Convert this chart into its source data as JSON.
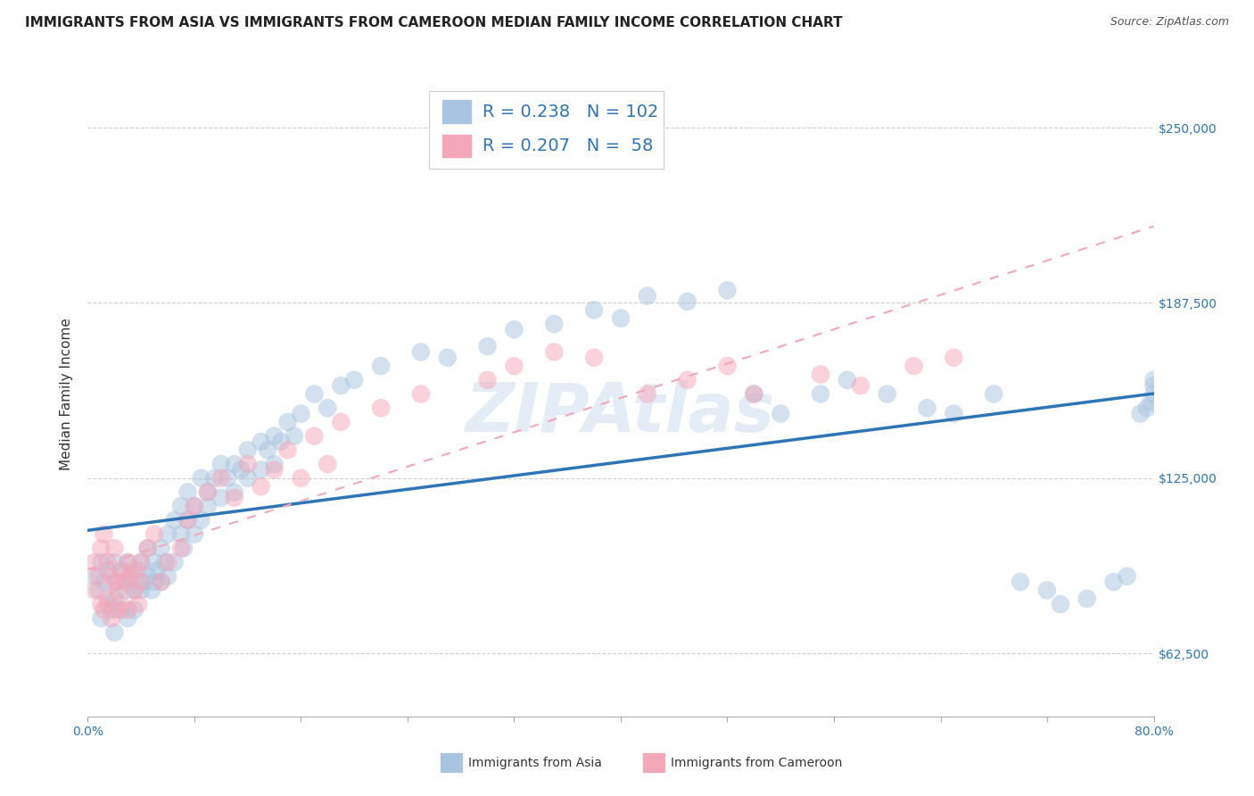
{
  "title": "IMMIGRANTS FROM ASIA VS IMMIGRANTS FROM CAMEROON MEDIAN FAMILY INCOME CORRELATION CHART",
  "source": "Source: ZipAtlas.com",
  "ylabel": "Median Family Income",
  "yticks": [
    62500,
    125000,
    187500,
    250000
  ],
  "ytick_labels": [
    "$62,500",
    "$125,000",
    "$187,500",
    "$250,000"
  ],
  "xlim": [
    0.0,
    0.8
  ],
  "ylim": [
    40000,
    270000
  ],
  "legend_r1": "0.238",
  "legend_n1": "102",
  "legend_r2": "0.207",
  "legend_n2": " 58",
  "color_asia": "#a8c4e0",
  "color_cameroon": "#f4a7b9",
  "color_asia_line": "#2e75b6",
  "color_cameroon_line": "#f4a7b9",
  "color_text_blue": "#2e75b6",
  "watermark": "ZIPAtlas",
  "asia_x": [
    0.005,
    0.008,
    0.01,
    0.01,
    0.012,
    0.015,
    0.015,
    0.018,
    0.02,
    0.02,
    0.02,
    0.022,
    0.025,
    0.025,
    0.028,
    0.03,
    0.03,
    0.03,
    0.032,
    0.035,
    0.035,
    0.038,
    0.04,
    0.04,
    0.042,
    0.045,
    0.045,
    0.048,
    0.05,
    0.05,
    0.052,
    0.055,
    0.055,
    0.058,
    0.06,
    0.06,
    0.065,
    0.065,
    0.07,
    0.07,
    0.072,
    0.075,
    0.075,
    0.08,
    0.08,
    0.085,
    0.085,
    0.09,
    0.09,
    0.095,
    0.1,
    0.1,
    0.105,
    0.11,
    0.11,
    0.115,
    0.12,
    0.12,
    0.13,
    0.13,
    0.135,
    0.14,
    0.14,
    0.145,
    0.15,
    0.155,
    0.16,
    0.17,
    0.18,
    0.19,
    0.2,
    0.22,
    0.25,
    0.27,
    0.3,
    0.32,
    0.35,
    0.38,
    0.4,
    0.42,
    0.45,
    0.48,
    0.5,
    0.52,
    0.55,
    0.57,
    0.6,
    0.63,
    0.65,
    0.68,
    0.7,
    0.72,
    0.73,
    0.75,
    0.77,
    0.78,
    0.79,
    0.795,
    0.798,
    0.8,
    0.8,
    0.8
  ],
  "asia_y": [
    90000,
    85000,
    95000,
    75000,
    88000,
    92000,
    80000,
    78000,
    95000,
    82000,
    70000,
    88000,
    92000,
    78000,
    85000,
    95000,
    88000,
    75000,
    90000,
    85000,
    78000,
    92000,
    95000,
    85000,
    88000,
    100000,
    90000,
    85000,
    95000,
    88000,
    92000,
    100000,
    88000,
    95000,
    105000,
    90000,
    110000,
    95000,
    105000,
    115000,
    100000,
    110000,
    120000,
    105000,
    115000,
    125000,
    110000,
    120000,
    115000,
    125000,
    130000,
    118000,
    125000,
    130000,
    120000,
    128000,
    135000,
    125000,
    138000,
    128000,
    135000,
    140000,
    130000,
    138000,
    145000,
    140000,
    148000,
    155000,
    150000,
    158000,
    160000,
    165000,
    170000,
    168000,
    172000,
    178000,
    180000,
    185000,
    182000,
    190000,
    188000,
    192000,
    155000,
    148000,
    155000,
    160000,
    155000,
    150000,
    148000,
    155000,
    88000,
    85000,
    80000,
    82000,
    88000,
    90000,
    148000,
    150000,
    152000,
    155000,
    158000,
    160000
  ],
  "cameroon_x": [
    0.005,
    0.005,
    0.008,
    0.01,
    0.01,
    0.012,
    0.012,
    0.015,
    0.015,
    0.018,
    0.018,
    0.02,
    0.02,
    0.022,
    0.022,
    0.025,
    0.025,
    0.028,
    0.03,
    0.03,
    0.032,
    0.035,
    0.035,
    0.038,
    0.04,
    0.04,
    0.045,
    0.05,
    0.055,
    0.06,
    0.07,
    0.075,
    0.08,
    0.09,
    0.1,
    0.11,
    0.12,
    0.13,
    0.14,
    0.15,
    0.16,
    0.17,
    0.18,
    0.19,
    0.22,
    0.25,
    0.3,
    0.32,
    0.35,
    0.38,
    0.42,
    0.45,
    0.48,
    0.5,
    0.55,
    0.58,
    0.62,
    0.65
  ],
  "cameroon_y": [
    95000,
    85000,
    90000,
    100000,
    80000,
    105000,
    78000,
    95000,
    82000,
    90000,
    75000,
    100000,
    88000,
    85000,
    78000,
    92000,
    80000,
    88000,
    95000,
    78000,
    90000,
    85000,
    92000,
    80000,
    95000,
    88000,
    100000,
    105000,
    88000,
    95000,
    100000,
    110000,
    115000,
    120000,
    125000,
    118000,
    130000,
    122000,
    128000,
    135000,
    125000,
    140000,
    130000,
    145000,
    150000,
    155000,
    160000,
    165000,
    170000,
    168000,
    155000,
    160000,
    165000,
    155000,
    162000,
    158000,
    165000,
    168000
  ],
  "title_fontsize": 11,
  "source_fontsize": 9,
  "axis_label_fontsize": 11,
  "tick_fontsize": 10,
  "legend_fontsize": 14,
  "watermark_fontsize": 55,
  "watermark_color": "#c5d8ea",
  "watermark_alpha": 0.45,
  "grid_color": "#d0d0d0",
  "background_color": "#ffffff",
  "scatter_alpha": 0.5,
  "scatter_size": 220
}
